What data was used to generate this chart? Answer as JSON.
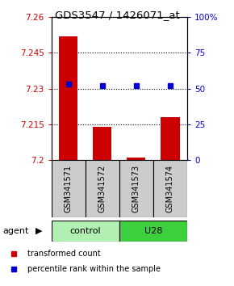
{
  "title": "GDS3547 / 1426071_at",
  "samples": [
    "GSM341571",
    "GSM341572",
    "GSM341573",
    "GSM341574"
  ],
  "bar_values": [
    7.252,
    7.214,
    7.201,
    7.218
  ],
  "bar_base": 7.2,
  "bar_color": "#cc0000",
  "percentile_values": [
    53,
    52,
    52,
    52
  ],
  "percentile_color": "#0000cc",
  "ylim_left": [
    7.2,
    7.26
  ],
  "ylim_right": [
    0,
    100
  ],
  "yticks_left": [
    7.2,
    7.215,
    7.23,
    7.245,
    7.26
  ],
  "ytick_labels_left": [
    "7.2",
    "7.215",
    "7.23",
    "7.245",
    "7.26"
  ],
  "yticks_right": [
    0,
    25,
    50,
    75,
    100
  ],
  "ytick_labels_right": [
    "0",
    "25",
    "50",
    "75",
    "100%"
  ],
  "hlines": [
    7.215,
    7.23,
    7.245
  ],
  "groups": [
    {
      "label": "control",
      "indices": [
        0,
        1
      ],
      "color": "#b2f0b2"
    },
    {
      "label": "U28",
      "indices": [
        2,
        3
      ],
      "color": "#3ecf3e"
    }
  ],
  "agent_label": "agent",
  "legend_items": [
    {
      "color": "#cc0000",
      "label": "transformed count"
    },
    {
      "color": "#0000cc",
      "label": "percentile rank within the sample"
    }
  ],
  "left_tick_color": "#cc0000",
  "right_tick_color": "#0000cc",
  "bar_width": 0.55,
  "sample_box_color": "#cccccc"
}
